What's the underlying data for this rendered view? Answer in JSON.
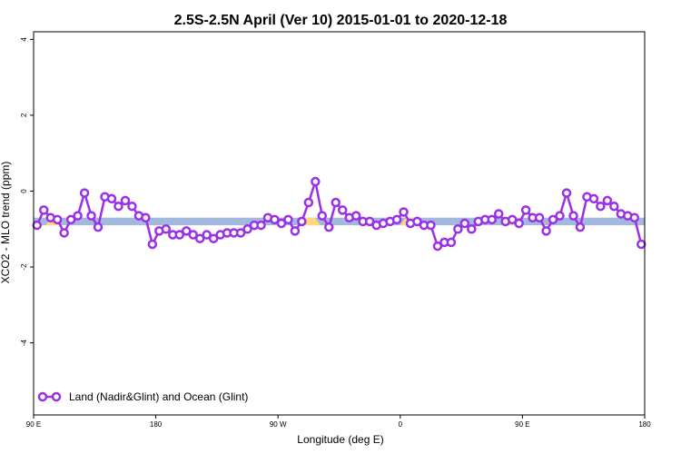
{
  "chart_data": {
    "type": "line",
    "title": "2.5S-2.5N April (Ver 10)   2015-01-01 to 2020-12-18",
    "xlabel": "Longitude (deg E)",
    "ylabel": "XCO2 - MLO trend (ppm)",
    "xlim": [
      90,
      450
    ],
    "ylim": [
      -5.9,
      4.2
    ],
    "x_ticks": [
      {
        "value": 90,
        "label": "90 E"
      },
      {
        "value": 162,
        "label": "180"
      },
      {
        "value": 234,
        "label": "90 W"
      },
      {
        "value": 306,
        "label": "0"
      },
      {
        "value": 378,
        "label": "90 E"
      },
      {
        "value": 450,
        "label": "180"
      }
    ],
    "y_ticks": [
      {
        "value": 4,
        "label": "4"
      },
      {
        "value": 2,
        "label": "2"
      },
      {
        "value": 0,
        "label": "0"
      },
      {
        "value": -2,
        "label": "-2"
      },
      {
        "value": -4,
        "label": "-4"
      }
    ],
    "legend": {
      "position": "bottom-left",
      "label": "Land (Nadir&Glint) and Ocean (Glint)"
    },
    "grid": false,
    "colors": {
      "series": "#9b30e6",
      "ocean_band": "#a2b8dc",
      "land_band": "#fdd97c"
    },
    "surface_band": {
      "y_range": [
        -0.9,
        -0.7
      ],
      "land_segments": [
        [
          97,
          103
        ],
        [
          101,
          105
        ],
        [
          246,
          259
        ],
        [
          306,
          320
        ],
        [
          370,
          378
        ]
      ]
    },
    "series": [
      {
        "name": "Land (Nadir&Glint) and Ocean (Glint)",
        "x": [
          92,
          96,
          100,
          104,
          108,
          112,
          116,
          120,
          124,
          128,
          132,
          136,
          140,
          144,
          148,
          152,
          156,
          160,
          164,
          168,
          172,
          176,
          180,
          184,
          188,
          192,
          196,
          200,
          204,
          208,
          212,
          216,
          220,
          224,
          228,
          232,
          236,
          240,
          244,
          248,
          252,
          256,
          260,
          264,
          268,
          272,
          276,
          280,
          284,
          288,
          292,
          296,
          300,
          304,
          308,
          312,
          316,
          320,
          324,
          328,
          332,
          336,
          340,
          344,
          348,
          352,
          356,
          360,
          364,
          368,
          372,
          376,
          380,
          384,
          388,
          392,
          396,
          400,
          404,
          408,
          412,
          416,
          420,
          424,
          428,
          432,
          436,
          440,
          444,
          448
        ],
        "y": [
          -0.9,
          -0.5,
          -0.7,
          -0.75,
          -1.1,
          -0.75,
          -0.65,
          -0.05,
          -0.65,
          -0.95,
          -0.15,
          -0.2,
          -0.4,
          -0.25,
          -0.4,
          -0.65,
          -0.7,
          -1.4,
          -1.05,
          -1.0,
          -1.15,
          -1.15,
          -1.05,
          -1.15,
          -1.25,
          -1.15,
          -1.25,
          -1.15,
          -1.1,
          -1.1,
          -1.1,
          -1.0,
          -0.9,
          -0.9,
          -0.7,
          -0.75,
          -0.85,
          -0.75,
          -1.05,
          -0.8,
          -0.3,
          0.25,
          -0.65,
          -0.95,
          -0.3,
          -0.5,
          -0.7,
          -0.65,
          -0.8,
          -0.8,
          -0.9,
          -0.85,
          -0.8,
          -0.75,
          -0.55,
          -0.85,
          -0.8,
          -0.9,
          -0.9,
          -1.45,
          -1.35,
          -1.35,
          -1.0,
          -0.85,
          -1.0,
          -0.8,
          -0.75,
          -0.75,
          -0.6,
          -0.8,
          -0.75,
          -0.85,
          -0.5,
          -0.7,
          -0.7,
          -1.05,
          -0.75,
          -0.65,
          -0.05,
          -0.65,
          -0.95,
          -0.15,
          -0.2,
          -0.4,
          -0.25,
          -0.4,
          -0.6,
          -0.65,
          -0.7,
          -1.4
        ]
      }
    ]
  }
}
